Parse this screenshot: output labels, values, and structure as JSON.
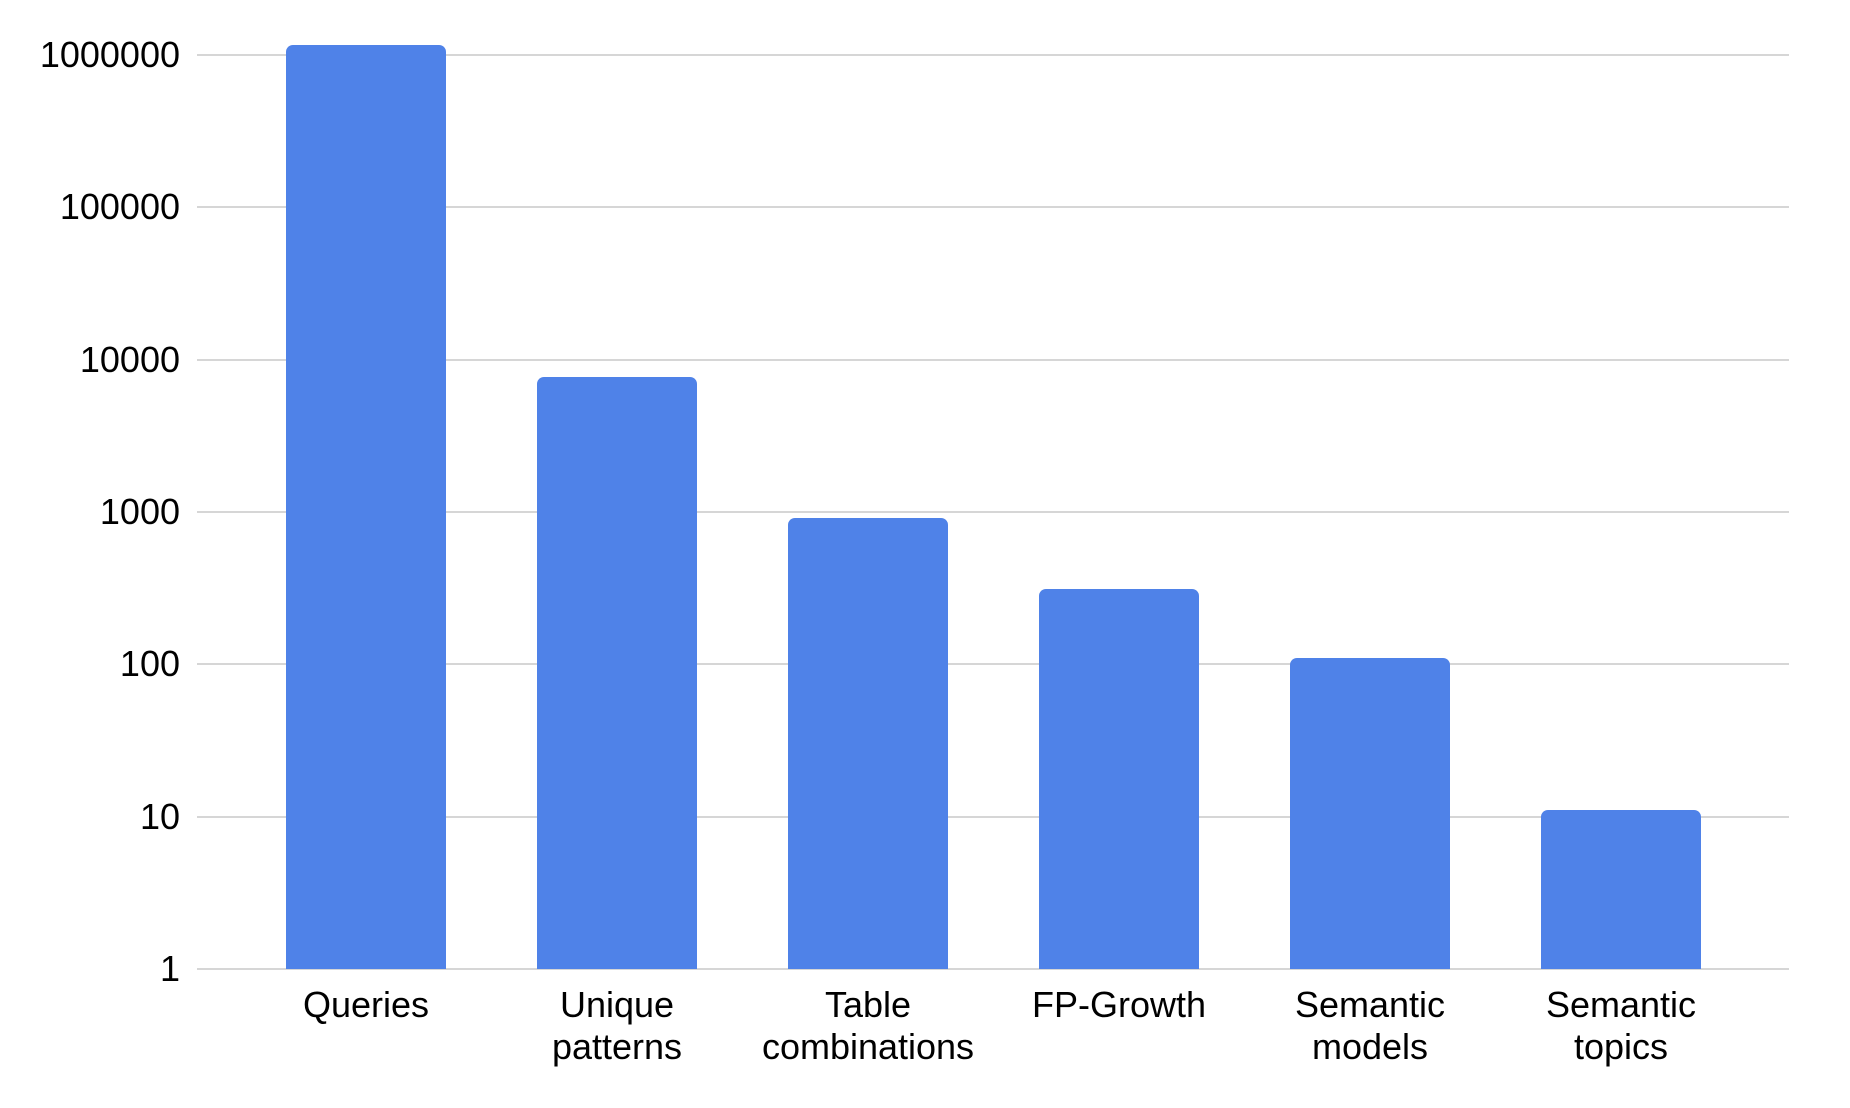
{
  "chart_data": {
    "type": "bar",
    "title": "",
    "xlabel": "",
    "ylabel": "",
    "yscale": "log",
    "ylim": [
      1,
      1480000
    ],
    "grid": true,
    "legend": false,
    "categories": [
      "Queries",
      "Unique patterns",
      "Table combinations",
      "FP-Growth",
      "Semantic models",
      "Semantic topics"
    ],
    "category_lines": [
      [
        "Queries"
      ],
      [
        "Unique",
        "patterns"
      ],
      [
        "Table",
        "combinations"
      ],
      [
        "FP-Growth"
      ],
      [
        "Semantic",
        "models"
      ],
      [
        "Semantic",
        "topics"
      ]
    ],
    "values": [
      1170000,
      7700,
      920,
      310,
      110,
      11
    ],
    "yticks": [
      1,
      10,
      100,
      1000,
      10000,
      100000,
      1000000
    ],
    "ytick_labels": [
      "1",
      "10",
      "100",
      "1000",
      "10000",
      "100000",
      "1000000"
    ],
    "bar_color": "#4f82e8",
    "gridline_color": "#d6d6d6",
    "label_color": "#000000",
    "background_color": "#ffffff"
  }
}
